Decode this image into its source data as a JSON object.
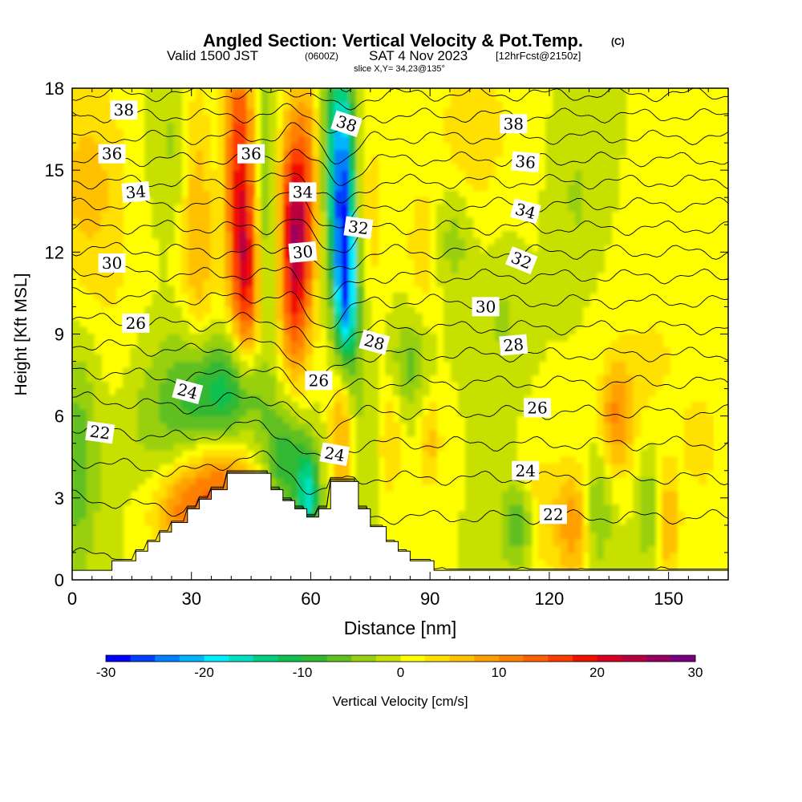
{
  "title": {
    "main": "Angled Section: Vertical Velocity & Pot.Temp.",
    "main_units": "(C)",
    "valid_a": "Valid 1500 JST",
    "valid_b": "(0600Z)",
    "valid_c": "SAT 4 Nov 2023",
    "valid_d": "[12hrFcst@2150z]",
    "slice": "slice X,Y= 34,23@135°"
  },
  "chart_data": {
    "type": "heatmap",
    "xlabel": "Distance [nm]",
    "ylabel": "Height [Kft MSL]",
    "xlim": [
      0,
      165
    ],
    "ylim": [
      0,
      18
    ],
    "x_ticks": [
      "0",
      "30",
      "60",
      "90",
      "120",
      "150"
    ],
    "x_tick_values": [
      0,
      30,
      60,
      90,
      120,
      150
    ],
    "x_minor_step": 5,
    "y_ticks": [
      "0",
      "3",
      "6",
      "9",
      "12",
      "15",
      "18"
    ],
    "y_tick_values": [
      0,
      3,
      6,
      9,
      12,
      15,
      18
    ],
    "y_minor_step": 1,
    "field": "Vertical Velocity",
    "colorbar": {
      "label": "Vertical Velocity [cm/s]",
      "min": -30,
      "max": 30,
      "step": 2.5,
      "tick_labels": [
        "-30",
        "-20",
        "-10",
        "0",
        "10",
        "20",
        "30"
      ],
      "tick_values": [
        -30,
        -20,
        -10,
        0,
        10,
        20,
        30
      ],
      "colors": [
        "#0000ff",
        "#0040ff",
        "#0080ff",
        "#00b4ff",
        "#00ecff",
        "#00e0c0",
        "#00d080",
        "#10c050",
        "#30b830",
        "#60c020",
        "#98d010",
        "#c8e000",
        "#ffff00",
        "#ffe000",
        "#ffc000",
        "#ffa000",
        "#ff8000",
        "#ff6000",
        "#ff3c00",
        "#f01000",
        "#d80020",
        "#b80040",
        "#980060",
        "#780080"
      ]
    },
    "velocity_features": [
      {
        "x": 1.5,
        "z": 4.5,
        "sx": 4,
        "sz": 3,
        "w": -7
      },
      {
        "x": 4,
        "z": 14.5,
        "sx": 7,
        "sz": 3,
        "w": 6
      },
      {
        "x": 12,
        "z": 8,
        "sx": 6,
        "sz": 3,
        "w": 2
      },
      {
        "x": 20,
        "z": 6,
        "sx": 7,
        "sz": 2.2,
        "w": -4
      },
      {
        "x": 25,
        "z": 16,
        "sx": 4,
        "sz": 2,
        "w": -3
      },
      {
        "x": 28,
        "z": 2.5,
        "sx": 6,
        "sz": 1.2,
        "w": 10
      },
      {
        "x": 32,
        "z": 13,
        "sx": 3,
        "sz": 4,
        "w": 8
      },
      {
        "x": 33,
        "z": 6.8,
        "sx": 6,
        "sz": 1.6,
        "w": -10
      },
      {
        "x": 38,
        "z": 3.6,
        "sx": 6,
        "sz": 1.2,
        "w": 11
      },
      {
        "x": 37,
        "z": 16,
        "sx": 3,
        "sz": 3,
        "w": -3
      },
      {
        "x": 42,
        "z": 15.5,
        "sx": 3,
        "sz": 3.5,
        "w": 17
      },
      {
        "x": 44,
        "z": 11,
        "sx": 2.5,
        "sz": 2.5,
        "w": 16
      },
      {
        "x": 43,
        "z": 7,
        "sx": 5,
        "sz": 1.5,
        "w": -8
      },
      {
        "x": 48,
        "z": 15,
        "sx": 2.5,
        "sz": 3,
        "w": -7
      },
      {
        "x": 51,
        "z": 12,
        "sx": 2.5,
        "sz": 2,
        "w": -5
      },
      {
        "x": 54,
        "z": 4.5,
        "sx": 4,
        "sz": 1.4,
        "w": -10
      },
      {
        "x": 56,
        "z": 11.5,
        "sx": 3,
        "sz": 2.8,
        "w": 20
      },
      {
        "x": 56,
        "z": 14,
        "sx": 4,
        "sz": 2,
        "w": 7
      },
      {
        "x": 59,
        "z": 16,
        "sx": 3,
        "sz": 3,
        "w": 6
      },
      {
        "x": 59.5,
        "z": 3,
        "sx": 2,
        "sz": 1.2,
        "w": -15
      },
      {
        "x": 64,
        "z": 16,
        "sx": 2,
        "sz": 3,
        "w": -6
      },
      {
        "x": 68,
        "z": 14.5,
        "sx": 2.2,
        "sz": 3,
        "w": -25
      },
      {
        "x": 69,
        "z": 10.5,
        "sx": 1.8,
        "sz": 2,
        "w": -18
      },
      {
        "x": 68,
        "z": 5.5,
        "sx": 2,
        "sz": 2,
        "w": 10
      },
      {
        "x": 72,
        "z": 8,
        "sx": 3,
        "sz": 3,
        "w": -4
      },
      {
        "x": 75,
        "z": 13,
        "sx": 3,
        "sz": 3,
        "w": 4
      },
      {
        "x": 80,
        "z": 5,
        "sx": 2,
        "sz": 1.5,
        "w": 5
      },
      {
        "x": 85,
        "z": 8,
        "sx": 3,
        "sz": 1.3,
        "w": -6
      },
      {
        "x": 88,
        "z": 12,
        "sx": 3,
        "sz": 2,
        "w": 4
      },
      {
        "x": 90,
        "z": 5,
        "sx": 2,
        "sz": 1.2,
        "w": 6
      },
      {
        "x": 96,
        "z": 12.5,
        "sx": 3,
        "sz": 1.5,
        "w": -4
      },
      {
        "x": 101,
        "z": 16.5,
        "sx": 6,
        "sz": 2,
        "w": 5
      },
      {
        "x": 108,
        "z": 9.5,
        "sx": 3,
        "sz": 1.5,
        "w": -3
      },
      {
        "x": 112,
        "z": 2,
        "sx": 3,
        "sz": 1,
        "w": -8
      },
      {
        "x": 118,
        "z": 2.5,
        "sx": 3,
        "sz": 1.5,
        "w": 5
      },
      {
        "x": 126,
        "z": 2,
        "sx": 3,
        "sz": 1.5,
        "w": 10
      },
      {
        "x": 127,
        "z": 14,
        "sx": 3,
        "sz": 1.5,
        "w": -3
      },
      {
        "x": 132,
        "z": 2.5,
        "sx": 2.5,
        "sz": 1.5,
        "w": -6
      },
      {
        "x": 137,
        "z": 6,
        "sx": 3,
        "sz": 1.5,
        "w": 10
      },
      {
        "x": 145,
        "z": 2.5,
        "sx": 2,
        "sz": 1.5,
        "w": -5
      },
      {
        "x": 150,
        "z": 2,
        "sx": 2,
        "sz": 1.5,
        "w": 8
      },
      {
        "x": 146,
        "z": 8,
        "sx": 6,
        "sz": 2,
        "w": 3
      },
      {
        "x": 158,
        "z": 5,
        "sx": 3,
        "sz": 1.2,
        "w": 5
      }
    ],
    "contour_levels": [
      20,
      21,
      22,
      23,
      24,
      25,
      26,
      27,
      28,
      29,
      30,
      31,
      32,
      33,
      34,
      35,
      36,
      37,
      38,
      39,
      40
    ],
    "contour_labels": [
      {
        "text": "38",
        "x": 13,
        "z": 17.2,
        "angle": 0
      },
      {
        "text": "36",
        "x": 10,
        "z": 15.6,
        "angle": 0
      },
      {
        "text": "34",
        "x": 16,
        "z": 14.2,
        "angle": -5
      },
      {
        "text": "30",
        "x": 10,
        "z": 11.6,
        "angle": 0
      },
      {
        "text": "26",
        "x": 16,
        "z": 9.4,
        "angle": 0
      },
      {
        "text": "24",
        "x": 29,
        "z": 6.9,
        "angle": 15
      },
      {
        "text": "22",
        "x": 7,
        "z": 5.4,
        "angle": 8
      },
      {
        "text": "36",
        "x": 45,
        "z": 15.6,
        "angle": 0
      },
      {
        "text": "34",
        "x": 58,
        "z": 14.2,
        "angle": 0
      },
      {
        "text": "30",
        "x": 58,
        "z": 12,
        "angle": -5
      },
      {
        "text": "38",
        "x": 69,
        "z": 16.7,
        "angle": 18
      },
      {
        "text": "32",
        "x": 72,
        "z": 12.9,
        "angle": 8
      },
      {
        "text": "28",
        "x": 76,
        "z": 8.7,
        "angle": 15
      },
      {
        "text": "26",
        "x": 62,
        "z": 7.3,
        "angle": 0
      },
      {
        "text": "24",
        "x": 66,
        "z": 4.6,
        "angle": 10
      },
      {
        "text": "38",
        "x": 111,
        "z": 16.7,
        "angle": 0
      },
      {
        "text": "36",
        "x": 114,
        "z": 15.3,
        "angle": 5
      },
      {
        "text": "34",
        "x": 114,
        "z": 13.5,
        "angle": 15
      },
      {
        "text": "32",
        "x": 113,
        "z": 11.7,
        "angle": 22
      },
      {
        "text": "30",
        "x": 104,
        "z": 10,
        "angle": 0
      },
      {
        "text": "28",
        "x": 111,
        "z": 8.6,
        "angle": -5
      },
      {
        "text": "26",
        "x": 117,
        "z": 6.3,
        "angle": 0
      },
      {
        "text": "24",
        "x": 114,
        "z": 4,
        "angle": 0
      },
      {
        "text": "22",
        "x": 121,
        "z": 2.4,
        "angle": 0
      }
    ],
    "terrain": [
      [
        0,
        0.35
      ],
      [
        10,
        0.35
      ],
      [
        10,
        0.7
      ],
      [
        16,
        0.7
      ],
      [
        16,
        1.05
      ],
      [
        19,
        1.05
      ],
      [
        19,
        1.4
      ],
      [
        22,
        1.4
      ],
      [
        22,
        1.75
      ],
      [
        25,
        1.75
      ],
      [
        25,
        2.1
      ],
      [
        29,
        2.1
      ],
      [
        29,
        2.6
      ],
      [
        32,
        2.6
      ],
      [
        32,
        2.95
      ],
      [
        35,
        2.95
      ],
      [
        35,
        3.3
      ],
      [
        39,
        3.3
      ],
      [
        39,
        3.9
      ],
      [
        50,
        3.9
      ],
      [
        50,
        3.3
      ],
      [
        53,
        3.3
      ],
      [
        53,
        2.9
      ],
      [
        56,
        2.9
      ],
      [
        56,
        2.6
      ],
      [
        59,
        2.6
      ],
      [
        59,
        2.3
      ],
      [
        62,
        2.3
      ],
      [
        62,
        2.6
      ],
      [
        65,
        2.6
      ],
      [
        65,
        3.6
      ],
      [
        72,
        3.6
      ],
      [
        72,
        2.6
      ],
      [
        75,
        2.6
      ],
      [
        75,
        1.95
      ],
      [
        79,
        1.95
      ],
      [
        79,
        1.4
      ],
      [
        82,
        1.4
      ],
      [
        82,
        1.05
      ],
      [
        85,
        1.05
      ],
      [
        85,
        0.7
      ],
      [
        91,
        0.7
      ],
      [
        91,
        0.35
      ],
      [
        165,
        0.35
      ]
    ]
  }
}
